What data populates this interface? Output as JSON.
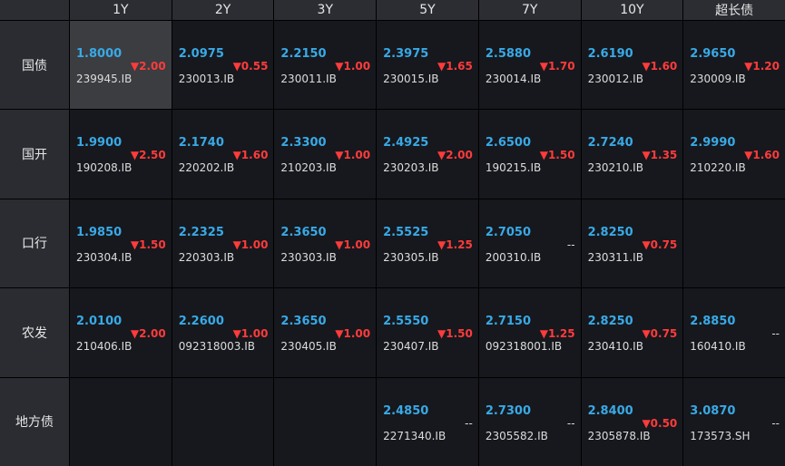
{
  "tenors": [
    "1Y",
    "2Y",
    "3Y",
    "5Y",
    "7Y",
    "10Y",
    "超长债"
  ],
  "rows": [
    {
      "label": "国债",
      "cells": [
        {
          "yield": "1.8000",
          "code": "239945.IB",
          "change": "▼2.00",
          "selected": true
        },
        {
          "yield": "2.0975",
          "code": "230013.IB",
          "change": "▼0.55"
        },
        {
          "yield": "2.2150",
          "code": "230011.IB",
          "change": "▼1.00"
        },
        {
          "yield": "2.3975",
          "code": "230015.IB",
          "change": "▼1.65"
        },
        {
          "yield": "2.5880",
          "code": "230014.IB",
          "change": "▼1.70"
        },
        {
          "yield": "2.6190",
          "code": "230012.IB",
          "change": "▼1.60"
        },
        {
          "yield": "2.9650",
          "code": "230009.IB",
          "change": "▼1.20"
        }
      ]
    },
    {
      "label": "国开",
      "cells": [
        {
          "yield": "1.9900",
          "code": "190208.IB",
          "change": "▼2.50"
        },
        {
          "yield": "2.1740",
          "code": "220202.IB",
          "change": "▼1.60"
        },
        {
          "yield": "2.3300",
          "code": "210203.IB",
          "change": "▼1.00"
        },
        {
          "yield": "2.4925",
          "code": "230203.IB",
          "change": "▼2.00"
        },
        {
          "yield": "2.6500",
          "code": "190215.IB",
          "change": "▼1.50"
        },
        {
          "yield": "2.7240",
          "code": "230210.IB",
          "change": "▼1.35"
        },
        {
          "yield": "2.9990",
          "code": "210220.IB",
          "change": "▼1.60"
        }
      ]
    },
    {
      "label": "口行",
      "cells": [
        {
          "yield": "1.9850",
          "code": "230304.IB",
          "change": "▼1.50"
        },
        {
          "yield": "2.2325",
          "code": "220303.IB",
          "change": "▼1.00"
        },
        {
          "yield": "2.3650",
          "code": "230303.IB",
          "change": "▼1.00"
        },
        {
          "yield": "2.5525",
          "code": "230305.IB",
          "change": "▼1.25"
        },
        {
          "yield": "2.7050",
          "code": "200310.IB",
          "change": "--"
        },
        {
          "yield": "2.8250",
          "code": "230311.IB",
          "change": "▼0.75"
        },
        null
      ]
    },
    {
      "label": "农发",
      "cells": [
        {
          "yield": "2.0100",
          "code": "210406.IB",
          "change": "▼2.00"
        },
        {
          "yield": "2.2600",
          "code": "092318003.IB",
          "change": "▼1.00"
        },
        {
          "yield": "2.3650",
          "code": "230405.IB",
          "change": "▼1.00"
        },
        {
          "yield": "2.5550",
          "code": "230407.IB",
          "change": "▼1.50"
        },
        {
          "yield": "2.7150",
          "code": "092318001.IB",
          "change": "▼1.25"
        },
        {
          "yield": "2.8250",
          "code": "230410.IB",
          "change": "▼0.75"
        },
        {
          "yield": "2.8850",
          "code": "160410.IB",
          "change": "--"
        }
      ]
    },
    {
      "label": "地方债",
      "cells": [
        null,
        null,
        null,
        {
          "yield": "2.4850",
          "code": "2271340.IB",
          "change": "--"
        },
        {
          "yield": "2.7300",
          "code": "2305582.IB",
          "change": "--"
        },
        {
          "yield": "2.8400",
          "code": "2305878.IB",
          "change": "▼0.50"
        },
        {
          "yield": "3.0870",
          "code": "173573.SH",
          "change": "--"
        }
      ]
    }
  ],
  "colors": {
    "yield": "#39a9e6",
    "down": "#ff3b3b",
    "bg": "#16181d",
    "header": "#2b2d33"
  }
}
